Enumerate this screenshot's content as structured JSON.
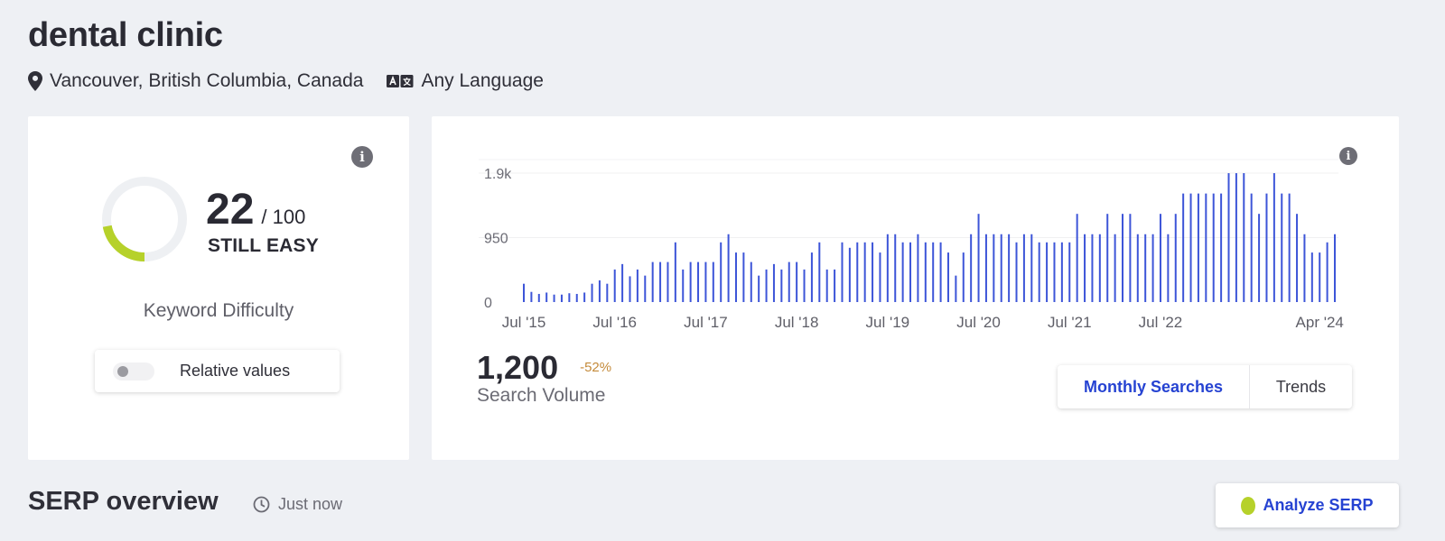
{
  "keyword": {
    "title": "dental clinic"
  },
  "meta": {
    "location": "Vancouver, British Columbia, Canada",
    "language": "Any Language"
  },
  "difficulty": {
    "score": "22",
    "max": "/ 100",
    "rating": "STILL EASY",
    "caption": "Keyword Difficulty",
    "toggle_label": "Relative values",
    "score_fraction": 0.22,
    "gauge_color": "#b6d12a",
    "track_color": "#eef0f3",
    "info_glyph": "i"
  },
  "volume": {
    "value": "1,200",
    "change": "-52%",
    "caption": "Search Volume",
    "info_glyph": "i",
    "tabs": {
      "monthly": "Monthly Searches",
      "trends": "Trends"
    }
  },
  "chart_data": {
    "type": "bar",
    "color": "#3d55d8",
    "y_ticks": [
      "0",
      "950",
      "1.9k"
    ],
    "y_tick_values": [
      0,
      950,
      1900
    ],
    "ylim": [
      0,
      2100
    ],
    "x_tick_labels": [
      "Jul '15",
      "Jul '16",
      "Jul '17",
      "Jul '18",
      "Jul '19",
      "Jul '20",
      "Jul '21",
      "Jul '22",
      "Apr '24"
    ],
    "x_tick_months": [
      0,
      12,
      24,
      36,
      48,
      60,
      72,
      84,
      105
    ],
    "values": [
      270,
      150,
      120,
      140,
      110,
      110,
      130,
      120,
      140,
      270,
      320,
      270,
      480,
      560,
      380,
      480,
      390,
      590,
      590,
      590,
      880,
      480,
      590,
      590,
      590,
      590,
      880,
      1000,
      730,
      730,
      590,
      390,
      480,
      560,
      480,
      590,
      590,
      480,
      730,
      880,
      480,
      480,
      880,
      800,
      880,
      880,
      880,
      730,
      1000,
      1000,
      880,
      880,
      1000,
      880,
      880,
      880,
      730,
      390,
      730,
      1000,
      1300,
      1000,
      1000,
      1000,
      1000,
      880,
      1000,
      1000,
      880,
      880,
      880,
      880,
      880,
      1300,
      1000,
      1000,
      1000,
      1300,
      1000,
      1300,
      1300,
      1000,
      1000,
      1000,
      1300,
      1000,
      1300,
      1600,
      1600,
      1600,
      1600,
      1600,
      1600,
      1900,
      1900,
      1900,
      1600,
      1300,
      1600,
      1900,
      1600,
      1600,
      1300,
      1000,
      730,
      730,
      880,
      1000
    ]
  },
  "serp": {
    "title": "SERP overview",
    "time": "Just now",
    "analyze_label": "Analyze SERP"
  },
  "icons": {
    "location": "map-pin-icon",
    "language": "translate-icon",
    "info": "info-icon",
    "clock": "clock-icon",
    "analyze": "lime-dot-icon"
  }
}
